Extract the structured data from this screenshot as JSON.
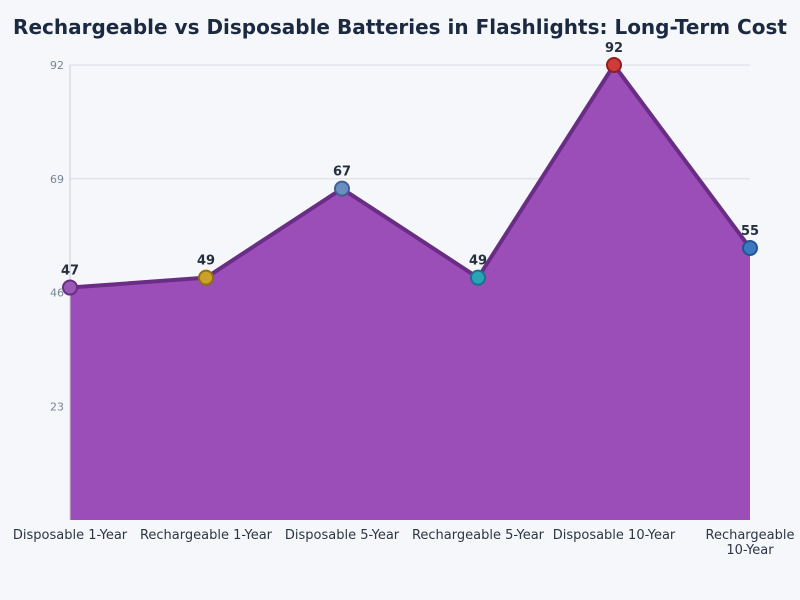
{
  "chart_data": {
    "type": "area",
    "title": "Rechargeable vs Disposable Batteries in Flashlights: Long-Term Cost",
    "xlabel": "",
    "ylabel": "",
    "categories": [
      "Disposable 1-Year",
      "Rechargeable 1-Year",
      "Disposable 5-Year",
      "Rechargeable 5-Year",
      "Disposable 10-Year",
      "Rechargeable 10-Year"
    ],
    "category_lines": [
      [
        "Disposable 1-Year"
      ],
      [
        "Rechargeable 1-Year"
      ],
      [
        "Disposable 5-Year"
      ],
      [
        "Rechargeable 5-Year"
      ],
      [
        "Disposable 10-Year"
      ],
      [
        "Rechargeable",
        "10-Year"
      ]
    ],
    "values": [
      47,
      49,
      67,
      49,
      92,
      55
    ],
    "data_labels": [
      "47",
      "49",
      "67",
      "49",
      "92",
      "55"
    ],
    "yticks": [
      23,
      46,
      69,
      92
    ],
    "ytick_labels": [
      "23",
      "46",
      "69",
      "92"
    ],
    "ylim": [
      0,
      92
    ],
    "grid": true,
    "legend": "none",
    "colors": {
      "fill": "#9b4db8",
      "line": "#6a2d86",
      "markers": [
        "#9b59b6",
        "#c9a227",
        "#6c8ebf",
        "#2aa3b8",
        "#d03b3b",
        "#3a78c2"
      ],
      "marker_edges": [
        "#6a2d86",
        "#8f7114",
        "#3f5f94",
        "#16748a",
        "#8e1f1f",
        "#22558f"
      ]
    }
  }
}
